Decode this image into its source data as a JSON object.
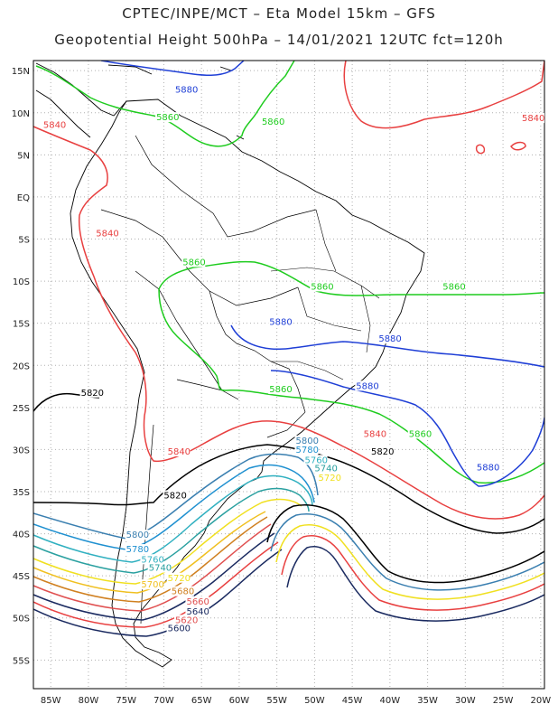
{
  "title_line1": "CPTEC/INPE/MCT –  Eta Model 15km – GFS",
  "title_line2": "Geopotential Height 500hPa – 14/01/2021 12UTC fct=120h",
  "lat_ticks": [
    "15N",
    "10N",
    "5N",
    "EQ",
    "5S",
    "10S",
    "15S",
    "20S",
    "25S",
    "30S",
    "35S",
    "40S",
    "45S",
    "50S",
    "55S"
  ],
  "lon_ticks": [
    "85W",
    "80W",
    "75W",
    "70W",
    "65W",
    "60W",
    "55W",
    "50W",
    "45W",
    "40W",
    "35W",
    "30W",
    "25W",
    "20W"
  ],
  "lat_values": [
    15,
    10,
    5,
    0,
    -5,
    -10,
    -15,
    -20,
    -25,
    -30,
    -35,
    -40,
    -45,
    -50,
    -55
  ],
  "lon_values": [
    -85,
    -80,
    -75,
    -70,
    -65,
    -60,
    -55,
    -50,
    -45,
    -40,
    -35,
    -30,
    -25,
    -20
  ],
  "colors": {
    "c5880": "#1f3fd6",
    "c5860": "#1fcc1f",
    "c5840": "#e84040",
    "c5820": "#000000",
    "c5800": "#3a7fb0",
    "c5780": "#1f90d0",
    "c5760": "#30b0c0",
    "c5740": "#2aa0a0",
    "c5720": "#f0e020",
    "c5700": "#f0c020",
    "c5680": "#d08020",
    "c5660": "#e05050",
    "c5640": "#1a2a60",
    "coast": "#000000",
    "grid": "#b0b0b0"
  },
  "labels": [
    {
      "text": "5880",
      "color": "c5880",
      "lon": -68.5,
      "lat": 12.4
    },
    {
      "text": "5860",
      "color": "c5860",
      "lon": -71.0,
      "lat": 9.1
    },
    {
      "text": "5860",
      "color": "c5860",
      "lon": -57.0,
      "lat": 8.6
    },
    {
      "text": "5840",
      "color": "c5840",
      "lon": -86.0,
      "lat": 8.2
    },
    {
      "text": "5840",
      "color": "c5840",
      "lon": -22.5,
      "lat": 9.0
    },
    {
      "text": "5840",
      "color": "c5840",
      "lon": -79.0,
      "lat": -4.7
    },
    {
      "text": "5860",
      "color": "c5860",
      "lon": -67.5,
      "lat": -8.1
    },
    {
      "text": "5860",
      "color": "c5860",
      "lon": -50.5,
      "lat": -11.0
    },
    {
      "text": "5860",
      "color": "c5860",
      "lon": -33.0,
      "lat": -11.0
    },
    {
      "text": "5880",
      "color": "c5880",
      "lon": -56.0,
      "lat": -15.2
    },
    {
      "text": "5880",
      "color": "c5880",
      "lon": -41.5,
      "lat": -17.2
    },
    {
      "text": "5880",
      "color": "c5880",
      "lon": -44.5,
      "lat": -22.8
    },
    {
      "text": "5860",
      "color": "c5860",
      "lon": -56.0,
      "lat": -23.2
    },
    {
      "text": "5820",
      "color": "c5820",
      "lon": -81.0,
      "lat": -23.6
    },
    {
      "text": "5840",
      "color": "c5840",
      "lon": -43.5,
      "lat": -28.5
    },
    {
      "text": "5860",
      "color": "c5860",
      "lon": -37.5,
      "lat": -28.5
    },
    {
      "text": "5840",
      "color": "c5840",
      "lon": -69.5,
      "lat": -30.6
    },
    {
      "text": "5800",
      "color": "c5800",
      "lon": -52.5,
      "lat": -29.3
    },
    {
      "text": "5780",
      "color": "c5780",
      "lon": -52.5,
      "lat": -30.4
    },
    {
      "text": "5760",
      "color": "c5760",
      "lon": -51.3,
      "lat": -31.6
    },
    {
      "text": "5740",
      "color": "c5740",
      "lon": -50.0,
      "lat": -32.6
    },
    {
      "text": "5720",
      "color": "c5720",
      "lon": -49.5,
      "lat": -33.7
    },
    {
      "text": "5820",
      "color": "c5820",
      "lon": -42.5,
      "lat": -30.6
    },
    {
      "text": "5880",
      "color": "c5880",
      "lon": -28.5,
      "lat": -32.5
    },
    {
      "text": "5820",
      "color": "c5820",
      "lon": -70.0,
      "lat": -35.8
    },
    {
      "text": "5800",
      "color": "c5800",
      "lon": -75.0,
      "lat": -40.5
    },
    {
      "text": "5780",
      "color": "c5780",
      "lon": -75.0,
      "lat": -42.2
    },
    {
      "text": "5760",
      "color": "c5760",
      "lon": -73.0,
      "lat": -43.4
    },
    {
      "text": "5740",
      "color": "c5740",
      "lon": -72.0,
      "lat": -44.4
    },
    {
      "text": "5720",
      "color": "c5720",
      "lon": -69.5,
      "lat": -45.6
    },
    {
      "text": "5700",
      "color": "c5700",
      "lon": -73.0,
      "lat": -46.4
    },
    {
      "text": "5680",
      "color": "c5680",
      "lon": -69.0,
      "lat": -47.2
    },
    {
      "text": "5660",
      "color": "c5660",
      "lon": -67.0,
      "lat": -48.4
    },
    {
      "text": "5640",
      "color": "c5640",
      "lon": -67.0,
      "lat": -49.6
    },
    {
      "text": "5620",
      "color": "c5660",
      "lon": -68.5,
      "lat": -50.6
    },
    {
      "text": "5600",
      "color": "c5640",
      "lon": -69.5,
      "lat": -51.6
    }
  ]
}
